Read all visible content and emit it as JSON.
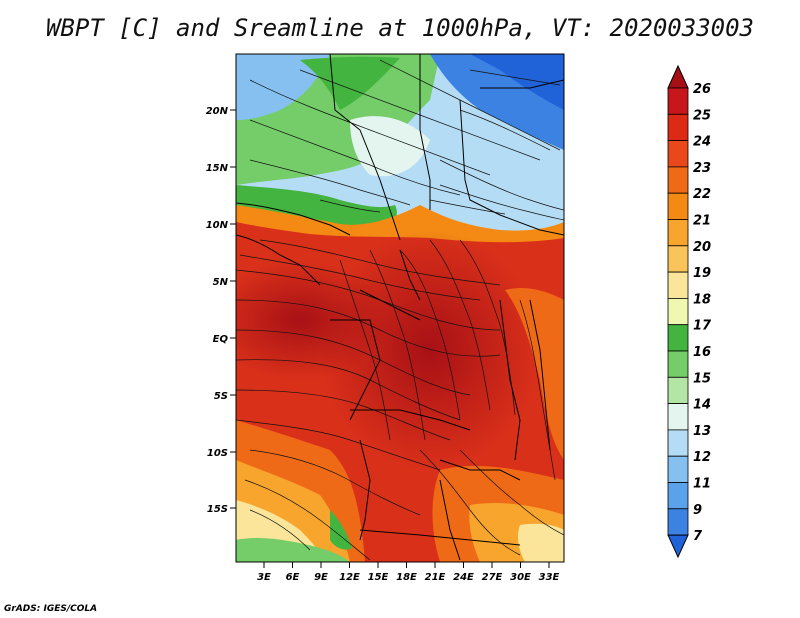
{
  "title": "WBPT [C] and Sreamline at 1000hPa, VT: 2020033003",
  "footer": "GrADS: IGES/COLA",
  "map": {
    "lat_labels": [
      "20N",
      "15N",
      "10N",
      "5N",
      "EQ",
      "5S",
      "10S",
      "15S"
    ],
    "lon_labels": [
      "3E",
      "6E",
      "9E",
      "12E",
      "15E",
      "18E",
      "21E",
      "24E",
      "27E",
      "30E",
      "33E"
    ]
  },
  "colorbar": {
    "labels": [
      "26",
      "25",
      "24",
      "23",
      "22",
      "21",
      "20",
      "19",
      "18",
      "17",
      "16",
      "15",
      "14",
      "13",
      "12",
      "11",
      "9",
      "7"
    ],
    "colors": [
      "#a50f15",
      "#c8171c",
      "#dc2a14",
      "#e8481a",
      "#ef6a16",
      "#f48a14",
      "#f7a52c",
      "#f9c45a",
      "#fbe59a",
      "#f0f7b0",
      "#43b43f",
      "#74cd68",
      "#b3e6a4",
      "#e3f5ee",
      "#b5dcf5",
      "#86c0f0",
      "#5aa2ea",
      "#3b82e3",
      "#2062d8"
    ]
  }
}
